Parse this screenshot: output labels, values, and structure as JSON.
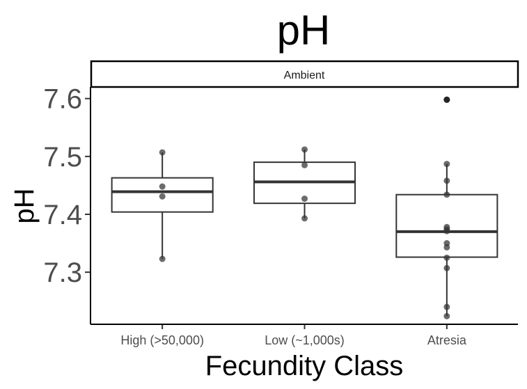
{
  "chart_data": {
    "type": "box",
    "title": "pH",
    "xlabel": "Fecundity Class",
    "ylabel": "pH",
    "facet": "Ambient",
    "categories": [
      "High (>50,000)",
      "Low (~1,000s)",
      "Atresia"
    ],
    "ylim": [
      7.21,
      7.62
    ],
    "yticks": [
      7.3,
      7.4,
      7.5,
      7.6
    ],
    "grid": false,
    "boxes": [
      {
        "category": "High (>50,000)",
        "q1": 7.404,
        "median": 7.439,
        "q3": 7.463,
        "whisker_low": 7.323,
        "whisker_high": 7.507,
        "outliers": []
      },
      {
        "category": "Low (~1,000s)",
        "q1": 7.419,
        "median": 7.456,
        "q3": 7.49,
        "whisker_low": 7.393,
        "whisker_high": 7.512,
        "outliers": []
      },
      {
        "category": "Atresia",
        "q1": 7.326,
        "median": 7.37,
        "q3": 7.434,
        "whisker_low": 7.224,
        "whisker_high": 7.487,
        "outliers": [
          7.598
        ]
      }
    ],
    "points": [
      {
        "category": "High (>50,000)",
        "values": [
          7.507,
          7.448,
          7.431,
          7.323
        ]
      },
      {
        "category": "Low (~1,000s)",
        "values": [
          7.512,
          7.485,
          7.427,
          7.393
        ]
      },
      {
        "category": "Atresia",
        "values": [
          7.598,
          7.487,
          7.458,
          7.434,
          7.378,
          7.374,
          7.371,
          7.35,
          7.343,
          7.325,
          7.307,
          7.24,
          7.224
        ]
      }
    ],
    "colors": {
      "points": "#333333",
      "box_line": "#333333",
      "median": "#333333"
    }
  }
}
